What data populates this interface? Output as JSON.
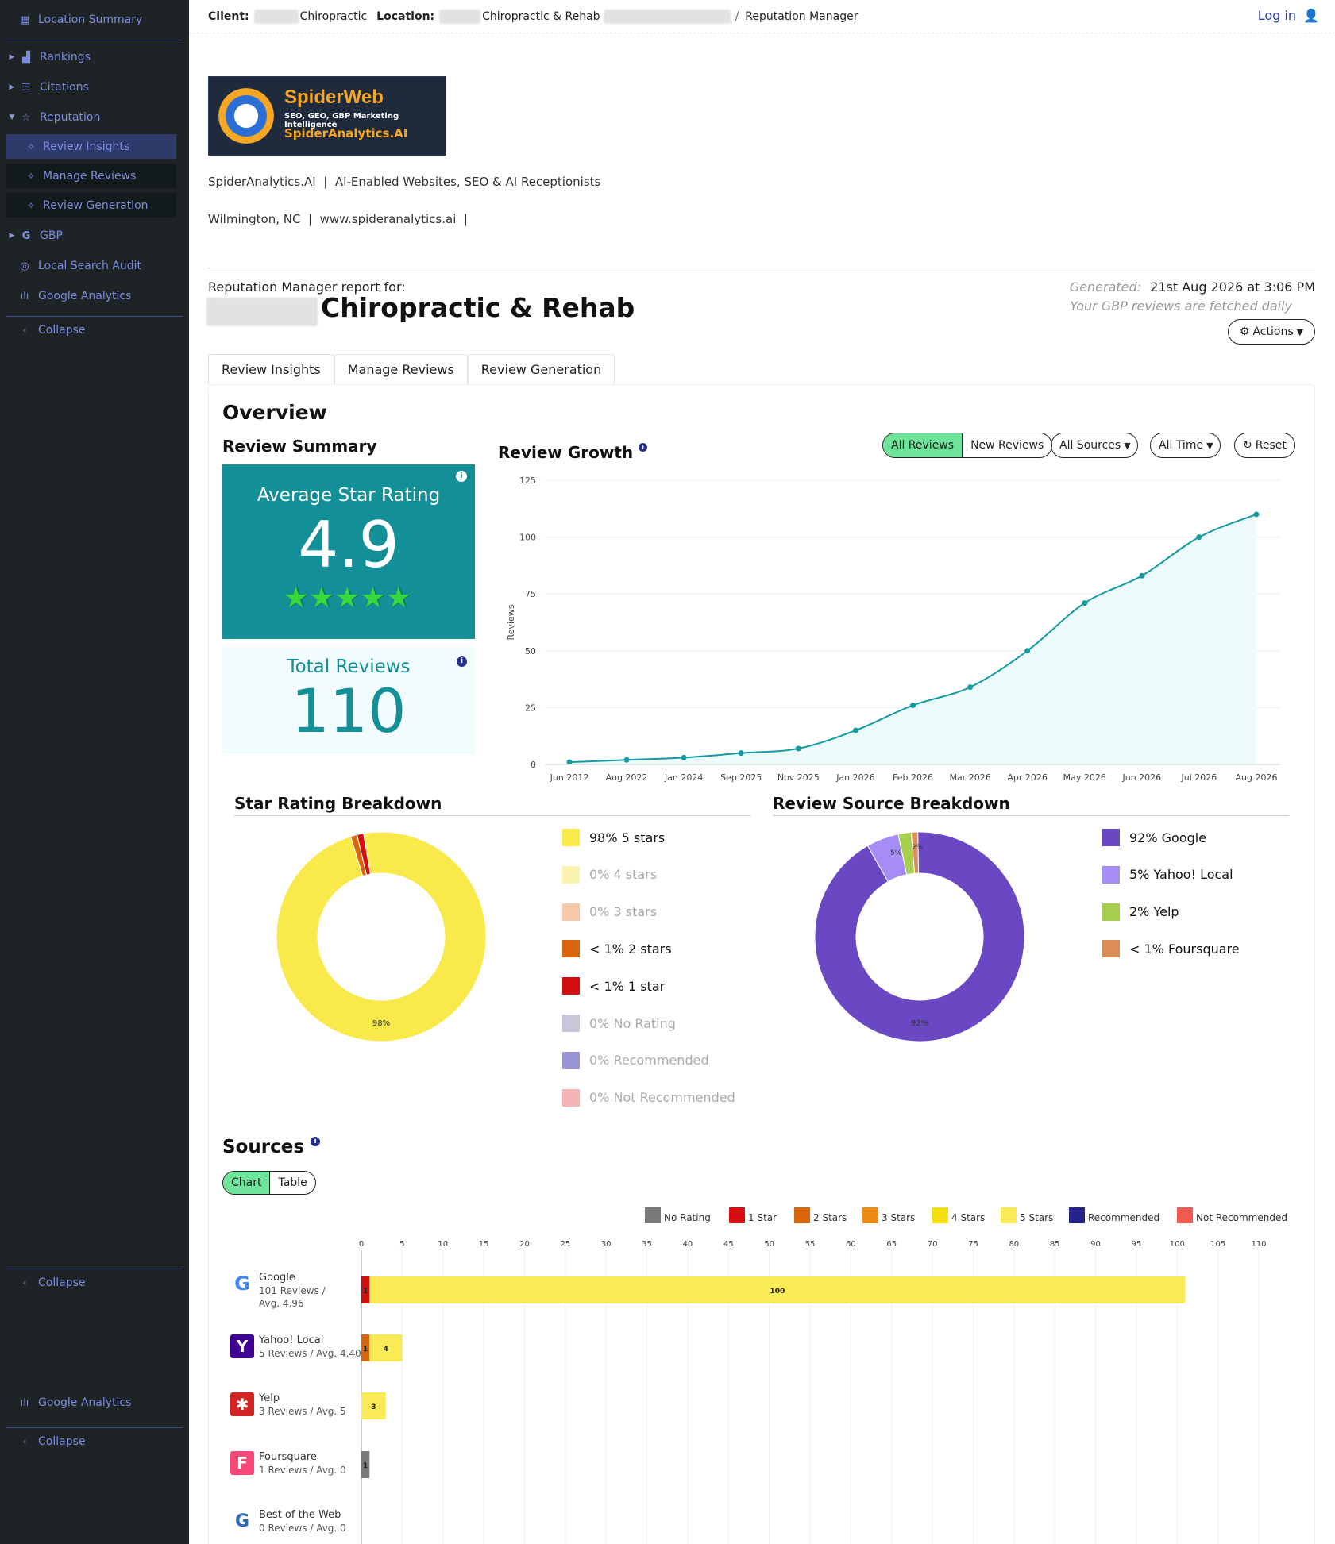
{
  "sidebar": {
    "items": [
      {
        "label": "Location Summary",
        "icon": "grid-icon"
      },
      {
        "label": "Rankings",
        "icon": "chart-icon"
      },
      {
        "label": "Citations",
        "icon": "list-icon"
      },
      {
        "label": "Reputation",
        "icon": "star-icon"
      },
      {
        "label": "GBP",
        "icon": "google-icon"
      },
      {
        "label": "Local Search Audit",
        "icon": "audit-icon"
      },
      {
        "label": "Google Analytics",
        "icon": "analytics-icon"
      }
    ],
    "sub_items": [
      "Review Insights",
      "Manage Reviews",
      "Review Generation"
    ],
    "collapse_label": "Collapse",
    "ghost_analytics": "Google Analytics"
  },
  "topbar": {
    "client_label": "Client:",
    "client_name": "Chiropractic",
    "location_label": "Location:",
    "location_name": "Chiropractic & Rehab",
    "breadcrumb_sep": "/",
    "page": "Reputation Manager",
    "login": "Log in"
  },
  "brand": {
    "logo_title": "SpiderWeb",
    "logo_tagline": "SEO, GEO, GBP Marketing Intelligence",
    "logo_site": "SpiderAnalytics.AI",
    "line1": "SpiderAnalytics.AI  |  AI-Enabled Websites, SEO & AI Receptionists",
    "line2": "Wilmington, NC  |  www.spideranalytics.ai  |"
  },
  "report": {
    "for_label": "Reputation Manager report for:",
    "business_name": "Chiropractic & Rehab",
    "generated_label": "Generated:",
    "generated_value": "21st Aug 2026 at 3:06 PM",
    "fetch_note": "Your GBP reviews are fetched daily",
    "actions_label": "Actions"
  },
  "tabs": [
    "Review Insights",
    "Manage Reviews",
    "Review Generation"
  ],
  "overview": {
    "title": "Overview",
    "summary_title": "Review Summary",
    "avg_label": "Average Star Rating",
    "avg_value": "4.9",
    "avg_stars": 4.9,
    "total_label": "Total Reviews",
    "total_value": "110"
  },
  "growth": {
    "title": "Review Growth",
    "filters": {
      "all_reviews": "All Reviews",
      "new_reviews": "New Reviews",
      "sources": "All Sources",
      "time": "All Time",
      "reset": "Reset"
    },
    "ylabel": "Reviews"
  },
  "star_breakdown": {
    "title": "Star Rating Breakdown",
    "center_label": "98%",
    "legend": [
      {
        "label": "98% 5 stars",
        "color": "#f9e94a",
        "active": true
      },
      {
        "label": "0% 4 stars",
        "color": "#fbf3b0",
        "active": false
      },
      {
        "label": "0% 3 stars",
        "color": "#f8c9a8",
        "active": false
      },
      {
        "label": "< 1% 2 stars",
        "color": "#d9650c",
        "active": true
      },
      {
        "label": "< 1% 1 star",
        "color": "#d40f0f",
        "active": true
      },
      {
        "label": "0% No Rating",
        "color": "#c9c6da",
        "active": false
      },
      {
        "label": "0% Recommended",
        "color": "#9896d2",
        "active": false
      },
      {
        "label": "0% Not Recommended",
        "color": "#f6b4b4",
        "active": false
      }
    ]
  },
  "source_breakdown": {
    "title": "Review Source Breakdown",
    "center_label": "92%",
    "small_labels": [
      "5%",
      "2%"
    ],
    "legend": [
      {
        "label": "92% Google",
        "color": "#6a48c4"
      },
      {
        "label": "5% Yahoo! Local",
        "color": "#a58df5"
      },
      {
        "label": "2% Yelp",
        "color": "#a6cf4e"
      },
      {
        "label": "< 1% Foursquare",
        "color": "#dc8c56"
      }
    ]
  },
  "sources": {
    "title": "Sources",
    "toggle_chart": "Chart",
    "toggle_table": "Table",
    "legend": [
      {
        "label": "No Rating",
        "color": "#7a7a7a"
      },
      {
        "label": "1 Star",
        "color": "#d40f0f"
      },
      {
        "label": "2 Stars",
        "color": "#d9650c"
      },
      {
        "label": "3 Stars",
        "color": "#f08a10"
      },
      {
        "label": "4 Stars",
        "color": "#f2e10c"
      },
      {
        "label": "5 Stars",
        "color": "#f9eb55"
      },
      {
        "label": "Recommended",
        "color": "#23238a"
      },
      {
        "label": "Not Recommended",
        "color": "#f05a50"
      }
    ],
    "rows": [
      {
        "name": "Google",
        "detail1": "101 Reviews /",
        "detail2": "Avg. 4.96",
        "logo": "G"
      },
      {
        "name": "Yahoo! Local",
        "detail1": "5 Reviews / Avg. 4.40",
        "detail2": "",
        "logo": "Y"
      },
      {
        "name": "Yelp",
        "detail1": "3 Reviews / Avg. 5",
        "detail2": "",
        "logo": "✱"
      },
      {
        "name": "Foursquare",
        "detail1": "1 Reviews / Avg. 0",
        "detail2": "",
        "logo": "F"
      },
      {
        "name": "Best of the Web",
        "detail1": "0 Reviews / Avg. 0",
        "detail2": "",
        "logo": "G"
      }
    ]
  },
  "chart_data": [
    {
      "type": "line",
      "title": "Review Growth",
      "ylabel": "Reviews",
      "x": [
        "Jun 2012",
        "Aug 2022",
        "Jan 2024",
        "Sep 2025",
        "Nov 2025",
        "Jan 2026",
        "Feb 2026",
        "Mar 2026",
        "Apr 2026",
        "May 2026",
        "Jun 2026",
        "Jul 2026",
        "Aug 2026"
      ],
      "values": [
        1,
        2,
        3,
        5,
        7,
        15,
        26,
        34,
        50,
        71,
        83,
        100,
        110
      ],
      "ylim": [
        0,
        125
      ],
      "yticks": [
        0,
        25,
        50,
        75,
        100,
        125
      ]
    },
    {
      "type": "pie",
      "title": "Star Rating Breakdown",
      "labels": [
        "5 stars",
        "2 stars",
        "1 star"
      ],
      "values": [
        98,
        1,
        1
      ],
      "colors": [
        "#f9e94a",
        "#d9650c",
        "#d40f0f"
      ]
    },
    {
      "type": "pie",
      "title": "Review Source Breakdown",
      "labels": [
        "Google",
        "Yahoo! Local",
        "Yelp",
        "Foursquare"
      ],
      "values": [
        92,
        5,
        2,
        1
      ],
      "colors": [
        "#6a48c4",
        "#a58df5",
        "#a6cf4e",
        "#dc8c56"
      ]
    },
    {
      "type": "bar",
      "title": "Sources",
      "categories": [
        "Google",
        "Yahoo! Local",
        "Yelp",
        "Foursquare",
        "Best of the Web"
      ],
      "xlim": [
        0,
        110
      ],
      "xticks": [
        0,
        5,
        10,
        15,
        20,
        25,
        30,
        35,
        40,
        45,
        50,
        55,
        60,
        65,
        70,
        75,
        80,
        85,
        90,
        95,
        100,
        105,
        110
      ],
      "series": [
        {
          "name": "No Rating",
          "values": [
            0,
            0,
            0,
            1,
            0
          ]
        },
        {
          "name": "1 Star",
          "values": [
            1,
            0,
            0,
            0,
            0
          ]
        },
        {
          "name": "2 Stars",
          "values": [
            0,
            1,
            0,
            0,
            0
          ]
        },
        {
          "name": "5 Stars",
          "values": [
            100,
            4,
            3,
            0,
            0
          ]
        }
      ]
    }
  ]
}
